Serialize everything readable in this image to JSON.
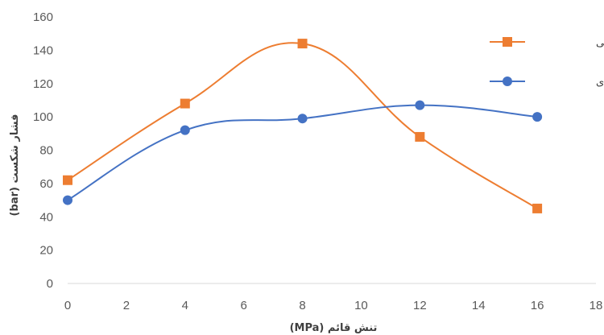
{
  "chart_data": {
    "type": "line",
    "smooth": true,
    "title": "",
    "xlabel": "تنش قائم (MPa)",
    "ylabel": "فشار شکست (bar)",
    "xlim": [
      0,
      18
    ],
    "ylim": [
      0,
      160
    ],
    "x_ticks": [
      0,
      2,
      4,
      6,
      8,
      10,
      12,
      14,
      16,
      18
    ],
    "y_ticks": [
      0,
      20,
      40,
      60,
      80,
      100,
      120,
      140,
      160
    ],
    "grid": false,
    "legend_position": "top-right",
    "x": [
      0,
      4,
      8,
      12,
      16
    ],
    "series": [
      {
        "name": "نمونه مکعبی",
        "marker": "square",
        "color": "#ED7D31",
        "values": [
          62,
          108,
          144,
          88,
          45
        ]
      },
      {
        "name": "نمونه استوانه ای",
        "marker": "circle",
        "color": "#4472C4",
        "values": [
          50,
          92,
          99,
          107,
          100
        ]
      }
    ]
  }
}
